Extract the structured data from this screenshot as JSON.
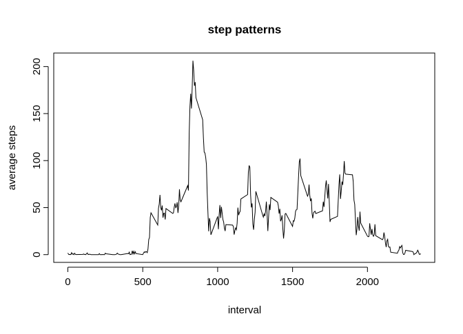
{
  "chart_data": {
    "type": "line",
    "title": "step patterns",
    "x_label": "interval",
    "y_label": "average steps",
    "color": "#000000",
    "x": [
      0,
      5,
      10,
      15,
      20,
      25,
      30,
      35,
      40,
      45,
      50,
      55,
      100,
      105,
      110,
      115,
      120,
      125,
      130,
      135,
      140,
      145,
      150,
      155,
      200,
      205,
      210,
      215,
      220,
      225,
      230,
      235,
      240,
      245,
      250,
      255,
      300,
      305,
      310,
      315,
      320,
      325,
      330,
      335,
      340,
      345,
      350,
      355,
      400,
      405,
      410,
      415,
      420,
      425,
      430,
      435,
      440,
      445,
      450,
      455,
      500,
      505,
      510,
      515,
      520,
      525,
      530,
      535,
      540,
      545,
      550,
      555,
      600,
      605,
      610,
      615,
      620,
      625,
      630,
      635,
      640,
      645,
      650,
      655,
      700,
      705,
      710,
      715,
      720,
      725,
      730,
      735,
      740,
      745,
      750,
      755,
      800,
      805,
      810,
      815,
      820,
      825,
      830,
      835,
      840,
      845,
      850,
      855,
      900,
      905,
      910,
      915,
      920,
      925,
      930,
      935,
      940,
      945,
      950,
      955,
      1000,
      1005,
      1010,
      1015,
      1020,
      1025,
      1030,
      1035,
      1040,
      1045,
      1050,
      1055,
      1100,
      1105,
      1110,
      1115,
      1120,
      1125,
      1130,
      1135,
      1140,
      1145,
      1150,
      1155,
      1200,
      1205,
      1210,
      1215,
      1220,
      1225,
      1230,
      1235,
      1240,
      1245,
      1250,
      1255,
      1300,
      1305,
      1310,
      1315,
      1320,
      1325,
      1330,
      1335,
      1340,
      1345,
      1350,
      1355,
      1400,
      1405,
      1410,
      1415,
      1420,
      1425,
      1430,
      1435,
      1440,
      1445,
      1450,
      1455,
      1500,
      1505,
      1510,
      1515,
      1520,
      1525,
      1530,
      1535,
      1540,
      1545,
      1550,
      1555,
      1600,
      1605,
      1610,
      1615,
      1620,
      1625,
      1630,
      1635,
      1640,
      1645,
      1650,
      1655,
      1700,
      1705,
      1710,
      1715,
      1720,
      1725,
      1730,
      1735,
      1740,
      1745,
      1750,
      1755,
      1800,
      1805,
      1810,
      1815,
      1820,
      1825,
      1830,
      1835,
      1840,
      1845,
      1850,
      1855,
      1900,
      1905,
      1910,
      1915,
      1920,
      1925,
      1930,
      1935,
      1940,
      1945,
      1950,
      1955,
      2000,
      2005,
      2010,
      2015,
      2020,
      2025,
      2030,
      2035,
      2040,
      2045,
      2050,
      2055,
      2100,
      2105,
      2110,
      2115,
      2120,
      2125,
      2130,
      2135,
      2140,
      2145,
      2150,
      2155,
      2200,
      2205,
      2210,
      2215,
      2220,
      2225,
      2230,
      2235,
      2240,
      2245,
      2250,
      2255,
      2300,
      2305,
      2310,
      2315,
      2320,
      2325,
      2330,
      2335,
      2340,
      2345,
      2350,
      2355
    ],
    "values": [
      1.7,
      0.3,
      0.1,
      0.2,
      0.1,
      2.1,
      0.5,
      0.9,
      0,
      1.5,
      0.3,
      0.1,
      0.3,
      0.7,
      0.2,
      0.3,
      0,
      1.1,
      1.8,
      0.2,
      0.2,
      0.4,
      0.3,
      0,
      0,
      0,
      1.1,
      0,
      0,
      0.1,
      0,
      0.2,
      0,
      0,
      1.5,
      0.9,
      0,
      0,
      0,
      0,
      0.2,
      0.6,
      1.6,
      0.6,
      0.5,
      0.1,
      0,
      0,
      1.2,
      0.9,
      2.6,
      0,
      0.3,
      0.4,
      4.1,
      0.7,
      3.5,
      0.8,
      3.1,
      1.1,
      0,
      1.6,
      3.0,
      2.2,
      3.3,
      3.0,
      2.1,
      6.1,
      16.0,
      18.3,
      39.5,
      44.5,
      31.5,
      49.3,
      53.8,
      63.5,
      50.0,
      47.1,
      52.2,
      39.3,
      44.0,
      44.2,
      37.4,
      49.0,
      43.8,
      44.4,
      50.5,
      54.5,
      49.9,
      51.0,
      55.7,
      44.3,
      52.3,
      69.5,
      57.8,
      56.2,
      73.4,
      68.2,
      129.4,
      157.5,
      171.2,
      155.4,
      177.3,
      206.2,
      195.9,
      179.6,
      183.4,
      167.0,
      143.5,
      124.0,
      109.1,
      108.1,
      103.7,
      95.9,
      66.2,
      45.2,
      24.8,
      38.8,
      35.0,
      21.1,
      40.6,
      27.0,
      42.4,
      52.7,
      38.9,
      50.8,
      44.3,
      37.4,
      34.7,
      28.3,
      25.1,
      31.9,
      31.4,
      29.7,
      21.3,
      25.5,
      28.4,
      26.5,
      33.4,
      50.0,
      42.0,
      44.6,
      46.0,
      59.2,
      63.9,
      87.7,
      94.8,
      92.8,
      63.4,
      50.2,
      54.5,
      32.4,
      26.5,
      37.7,
      45.1,
      67.3,
      42.3,
      39.9,
      43.3,
      41.0,
      46.2,
      56.4,
      42.8,
      25.1,
      40.0,
      53.5,
      47.3,
      60.8,
      55.8,
      52.0,
      43.6,
      48.7,
      35.5,
      37.5,
      41.8,
      27.5,
      17.1,
      26.2,
      43.2,
      43.8,
      30.0,
      36.1,
      35.5,
      38.8,
      46.0,
      47.8,
      48.1,
      65.3,
      82.9,
      98.7,
      102.1,
      84.0,
      62.1,
      64.1,
      74.5,
      63.2,
      56.9,
      59.8,
      43.9,
      38.6,
      44.7,
      45.5,
      46.2,
      43.7,
      46.6,
      56.3,
      50.7,
      61.2,
      72.7,
      78.9,
      68.9,
      59.7,
      75.1,
      56.5,
      34.8,
      37.5,
      40.7,
      58.0,
      74.7,
      85.3,
      59.3,
      67.8,
      77.7,
      74.2,
      85.3,
      99.5,
      86.6,
      85.6,
      84.9,
      77.8,
      58.0,
      53.4,
      36.3,
      20.7,
      27.4,
      40.0,
      30.2,
      25.5,
      45.7,
      33.5,
      19.6,
      19.0,
      19.3,
      33.3,
      26.8,
      21.2,
      27.3,
      21.3,
      19.5,
      21.3,
      32.3,
      20.2,
      15.9,
      17.2,
      23.5,
      19.2,
      12.5,
      8.0,
      14.7,
      16.3,
      8.7,
      7.8,
      8.1,
      2.6,
      1.5,
      3.7,
      4.8,
      8.5,
      7.1,
      8.7,
      9.8,
      2.2,
      0.3,
      0.1,
      1.6,
      4.6,
      3.3,
      2.8,
      0,
      0.8,
      1.0,
      1.6,
      2.6,
      4.7,
      3.3,
      0.6,
      0.2,
      1.1
    ],
    "xlim": [
      -94.2,
      2449.2
    ],
    "ylim": [
      -8.25,
      214.4
    ],
    "xticks": [
      0,
      500,
      1000,
      1500,
      2000
    ],
    "yticks": [
      0,
      50,
      100,
      150,
      200
    ]
  }
}
